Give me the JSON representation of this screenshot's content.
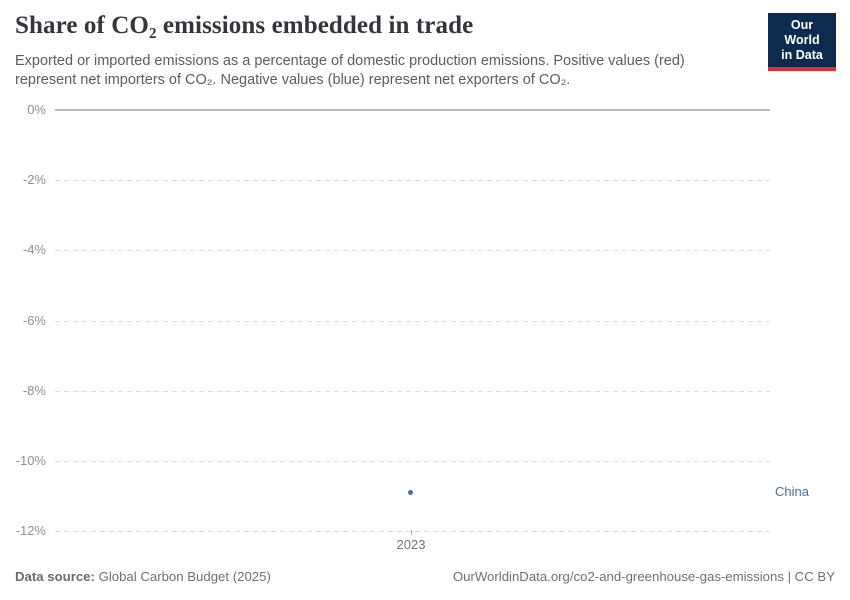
{
  "header": {
    "title": "Share of CO₂ emissions embedded in trade",
    "subtitle": "Exported or imported emissions as a percentage of domestic production emissions. Positive values (red) represent net importers of CO₂. Negative values (blue) represent net exporters of CO₂.",
    "logo": {
      "line1": "Our World",
      "line2": "in Data"
    }
  },
  "chart_data": {
    "type": "scatter",
    "series": [
      {
        "name": "China",
        "x": [
          2023
        ],
        "y": [
          -10.9
        ],
        "color": "#4c6a9c"
      }
    ],
    "title": "Share of CO₂ emissions embedded in trade",
    "xlabel": "",
    "ylabel": "",
    "ylim": [
      -12,
      0
    ],
    "grid": true,
    "legend_position": "right-of-point",
    "yticks": [
      {
        "value": 0,
        "label": "0%"
      },
      {
        "value": -2,
        "label": "-2%"
      },
      {
        "value": -4,
        "label": "-4%"
      },
      {
        "value": -6,
        "label": "-6%"
      },
      {
        "value": -8,
        "label": "-8%"
      },
      {
        "value": -10,
        "label": "-10%"
      },
      {
        "value": -12,
        "label": "-12%"
      }
    ],
    "xticks": [
      {
        "value": 2023,
        "label": "2023"
      }
    ]
  },
  "footer": {
    "source_label": "Data source:",
    "source_value": "Global Carbon Budget (2025)",
    "credit": "OurWorldinData.org/co2-and-greenhouse-gas-emissions | CC BY"
  },
  "colors": {
    "accent_blue": "#4c6a9c",
    "logo_navy": "#0d2b4e",
    "logo_red": "#dc2f36",
    "gridline": "#dcdcdc",
    "zero_line": "#b9b9b9",
    "ytick_label": "#8f8f8f",
    "xtick_label": "#727272",
    "title_text": "#33363d",
    "subtitle_text": "#595d63",
    "footer_text": "#707070"
  }
}
